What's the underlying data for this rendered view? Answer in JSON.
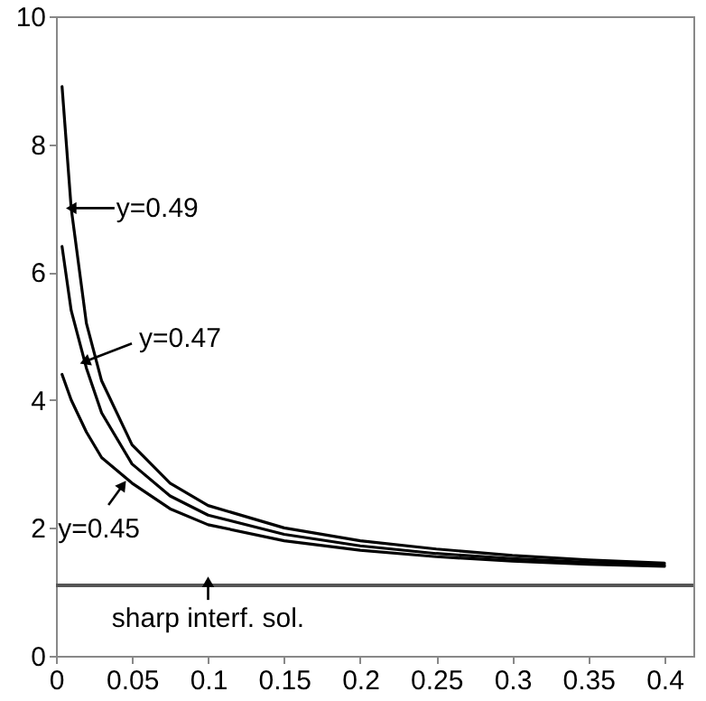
{
  "chart_data": {
    "type": "line",
    "series": [
      {
        "color": "#000000",
        "x": [
          0.004,
          0.01,
          0.02,
          0.03,
          0.05,
          0.075,
          0.1,
          0.15,
          0.2,
          0.25,
          0.3,
          0.35,
          0.4
        ],
        "values": [
          8.9,
          7.0,
          5.2,
          4.3,
          3.3,
          2.7,
          2.35,
          2.0,
          1.8,
          1.67,
          1.57,
          1.5,
          1.45
        ]
      },
      {
        "color": "#000000",
        "x": [
          0.004,
          0.01,
          0.02,
          0.03,
          0.05,
          0.075,
          0.1,
          0.15,
          0.2,
          0.25,
          0.3,
          0.35,
          0.4
        ],
        "values": [
          6.4,
          5.4,
          4.5,
          3.8,
          3.0,
          2.5,
          2.2,
          1.9,
          1.72,
          1.6,
          1.52,
          1.46,
          1.42
        ]
      },
      {
        "color": "#000000",
        "x": [
          0.004,
          0.01,
          0.02,
          0.03,
          0.05,
          0.075,
          0.1,
          0.15,
          0.2,
          0.25,
          0.3,
          0.35,
          0.4
        ],
        "values": [
          4.4,
          4.0,
          3.5,
          3.1,
          2.7,
          2.3,
          2.05,
          1.8,
          1.65,
          1.55,
          1.48,
          1.43,
          1.4
        ]
      }
    ],
    "annotations": [
      {
        "text": "y=0.49",
        "x": 0.01,
        "y": 7.0
      },
      {
        "text": "y=0.47",
        "x": 0.019,
        "y": 4.6
      },
      {
        "text": "y=0.45",
        "x": 0.044,
        "y": 2.67
      }
    ],
    "ref_lines": [
      {
        "axis": "y",
        "value": 1.1,
        "label": "sharp interf. sol.",
        "color": "#555555"
      }
    ],
    "xlim": [
      0,
      0.419
    ],
    "xticks": [
      0,
      0.05,
      0.1,
      0.15,
      0.2,
      0.25,
      0.3,
      0.35,
      0.4
    ],
    "ylim": [
      0,
      10
    ],
    "yticks": [
      0,
      2,
      4,
      6,
      8,
      10
    ],
    "grid": false,
    "marker": "none",
    "line_style": "solid"
  }
}
